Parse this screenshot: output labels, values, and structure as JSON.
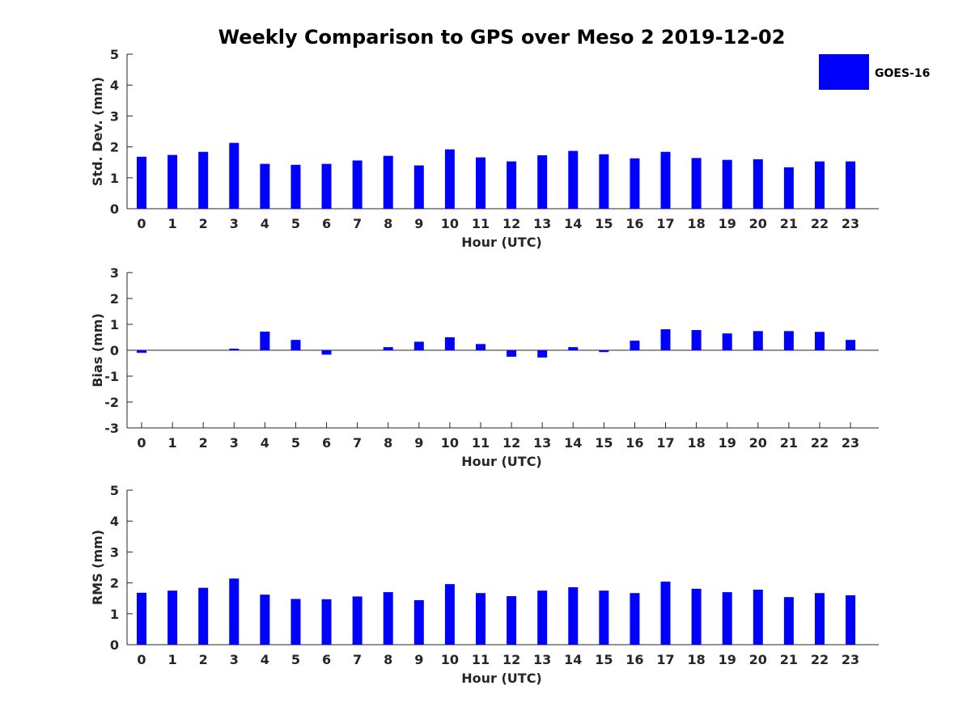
{
  "title": "Weekly Comparison to GPS over Meso 2 2019-12-02",
  "legend": {
    "label": "GOES-16",
    "color": "#0000ff"
  },
  "chart_data": [
    {
      "type": "bar",
      "name": "std-dev",
      "categories": [
        "0",
        "1",
        "2",
        "3",
        "4",
        "5",
        "6",
        "7",
        "8",
        "9",
        "10",
        "11",
        "12",
        "13",
        "14",
        "15",
        "16",
        "17",
        "18",
        "19",
        "20",
        "21",
        "22",
        "23"
      ],
      "series": [
        {
          "name": "GOES-16",
          "color": "#0000ff",
          "values": [
            1.68,
            1.74,
            1.84,
            2.13,
            1.45,
            1.42,
            1.45,
            1.56,
            1.71,
            1.4,
            1.92,
            1.66,
            1.53,
            1.73,
            1.87,
            1.76,
            1.63,
            1.84,
            1.64,
            1.58,
            1.6,
            1.34,
            1.53,
            1.53
          ]
        }
      ],
      "xlabel": "Hour (UTC)",
      "ylabel": "Std. Dev. (mm)",
      "ylim": [
        0,
        5
      ],
      "yticks": [
        "0",
        "1",
        "2",
        "3",
        "4",
        "5"
      ]
    },
    {
      "type": "bar",
      "name": "bias",
      "categories": [
        "0",
        "1",
        "2",
        "3",
        "4",
        "5",
        "6",
        "7",
        "8",
        "9",
        "10",
        "11",
        "12",
        "13",
        "14",
        "15",
        "16",
        "17",
        "18",
        "19",
        "20",
        "21",
        "22",
        "23"
      ],
      "series": [
        {
          "name": "GOES-16",
          "color": "#0000ff",
          "values": [
            -0.1,
            0.0,
            0.0,
            0.06,
            0.72,
            0.4,
            -0.17,
            0.0,
            0.12,
            0.33,
            0.5,
            0.24,
            -0.25,
            -0.28,
            0.12,
            -0.07,
            0.37,
            0.81,
            0.78,
            0.65,
            0.74,
            0.74,
            0.71,
            0.4
          ]
        }
      ],
      "xlabel": "Hour (UTC)",
      "ylabel": "Bias (mm)",
      "ylim": [
        -3,
        3
      ],
      "yticks": [
        "-3",
        "-2",
        "-1",
        "0",
        "1",
        "2",
        "3"
      ]
    },
    {
      "type": "bar",
      "name": "rms",
      "categories": [
        "0",
        "1",
        "2",
        "3",
        "4",
        "5",
        "6",
        "7",
        "8",
        "9",
        "10",
        "11",
        "12",
        "13",
        "14",
        "15",
        "16",
        "17",
        "18",
        "19",
        "20",
        "21",
        "22",
        "23"
      ],
      "series": [
        {
          "name": "GOES-16",
          "color": "#0000ff",
          "values": [
            1.68,
            1.75,
            1.84,
            2.14,
            1.62,
            1.48,
            1.47,
            1.56,
            1.7,
            1.44,
            1.96,
            1.67,
            1.57,
            1.75,
            1.86,
            1.75,
            1.67,
            2.04,
            1.81,
            1.7,
            1.78,
            1.54,
            1.67,
            1.6
          ]
        }
      ],
      "xlabel": "Hour (UTC)",
      "ylabel": "RMS (mm)",
      "ylim": [
        0,
        5
      ],
      "yticks": [
        "0",
        "1",
        "2",
        "3",
        "4",
        "5"
      ]
    }
  ]
}
